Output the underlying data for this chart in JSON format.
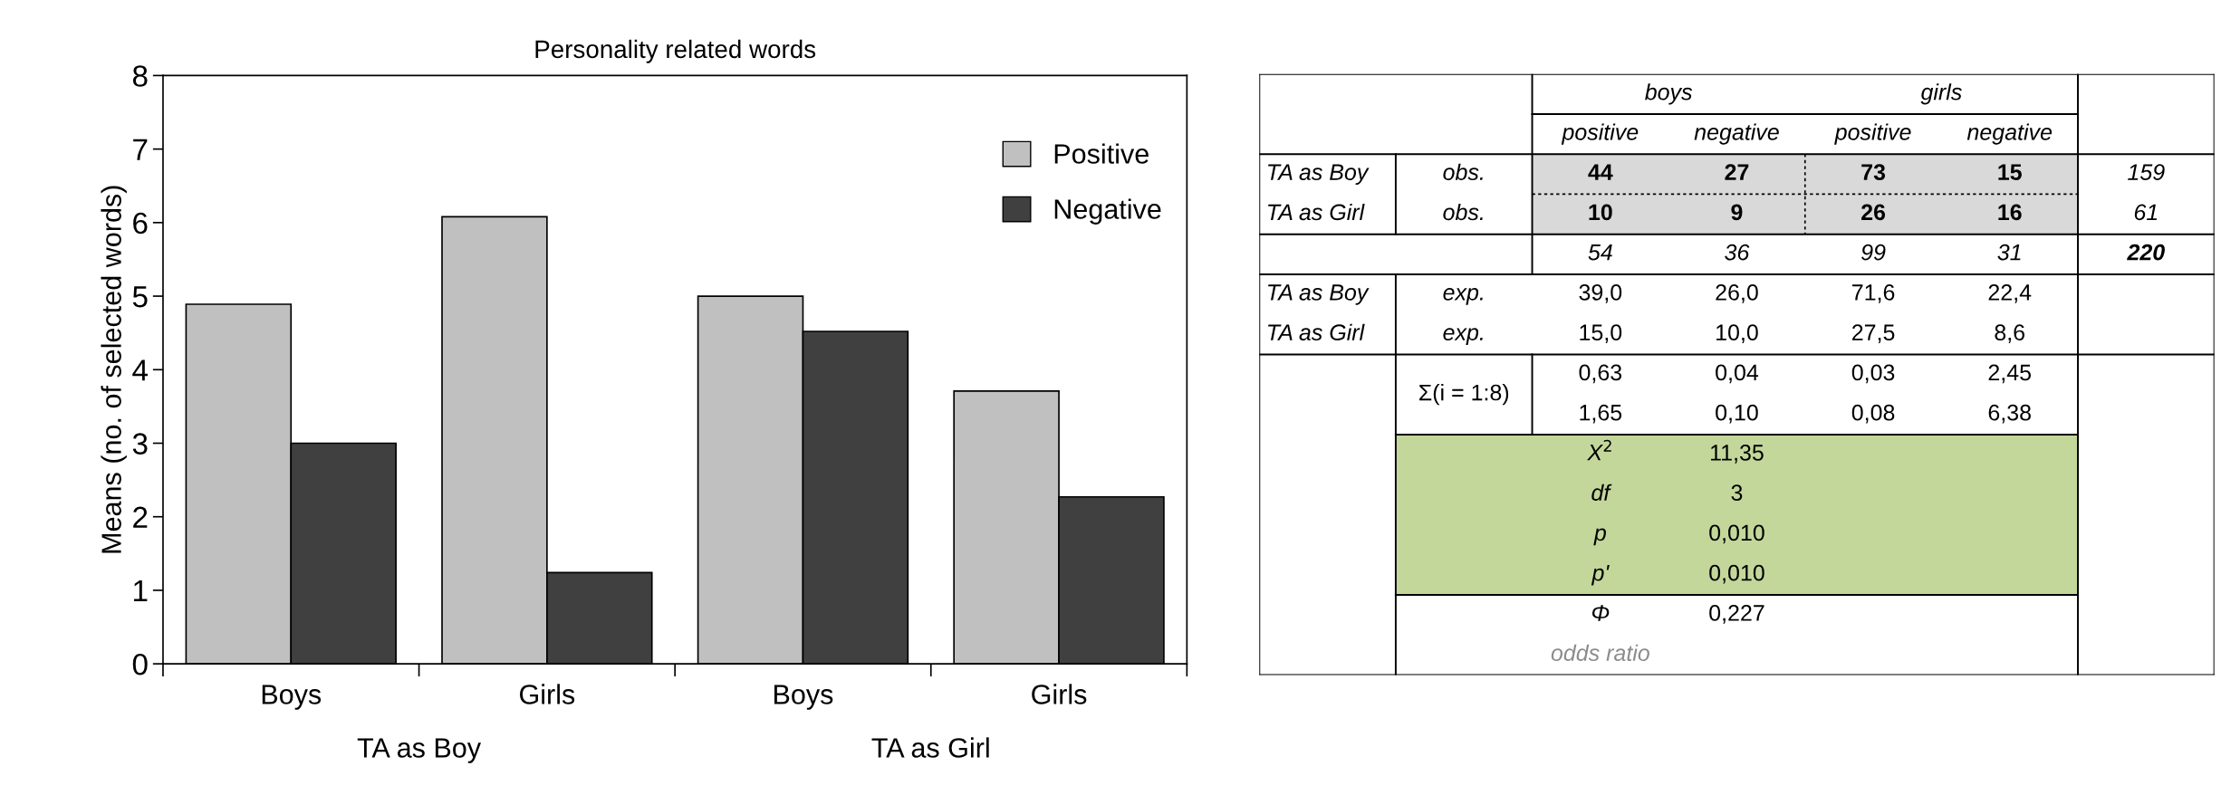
{
  "chart_data": [
    {
      "type": "bar",
      "title": "Personality related words",
      "ylabel": "Means (no. of selected words)",
      "categories": [
        "Boys",
        "Girls",
        "Boys",
        "Girls"
      ],
      "series": [
        {
          "name": "Positive",
          "color": "#c0c0c0",
          "values": [
            4.89,
            6.08,
            5.0,
            3.71
          ]
        },
        {
          "name": "Negative",
          "color": "#404040",
          "values": [
            3.0,
            1.24,
            4.52,
            2.27
          ]
        }
      ],
      "ylim": [
        0,
        8
      ],
      "yticks": [
        0,
        1,
        2,
        3,
        4,
        5,
        6,
        7,
        8
      ],
      "legend": "top right",
      "annotations": [
        "TA as Boy",
        "TA as Girl"
      ]
    },
    {
      "type": "other",
      "annotations": [
        "boys",
        "girls",
        "positive",
        "negative",
        "positive",
        "negative",
        "TA as Boy",
        "obs.",
        "44",
        "27",
        "73",
        "15",
        "159",
        "TA as Girl",
        "obs.",
        "10",
        "9",
        "26",
        "16",
        "61",
        "54",
        "36",
        "99",
        "31",
        "220",
        "TA as Boy",
        "exp.",
        "39,0",
        "26,0",
        "71,6",
        "22,4",
        "TA as Girl",
        "exp.",
        "15,0",
        "10,0",
        "27,5",
        "8,6",
        "Σ(i = 1:8)",
        "0,63",
        "0,04",
        "0,03",
        "2,45",
        "1,65",
        "0,10",
        "0,08",
        "6,38",
        "X$^{2}$",
        "11,35",
        "df",
        "3",
        "p",
        "0,010",
        "p'",
        "0,010",
        "Φ",
        "0,227",
        "odds ratio"
      ]
    }
  ]
}
